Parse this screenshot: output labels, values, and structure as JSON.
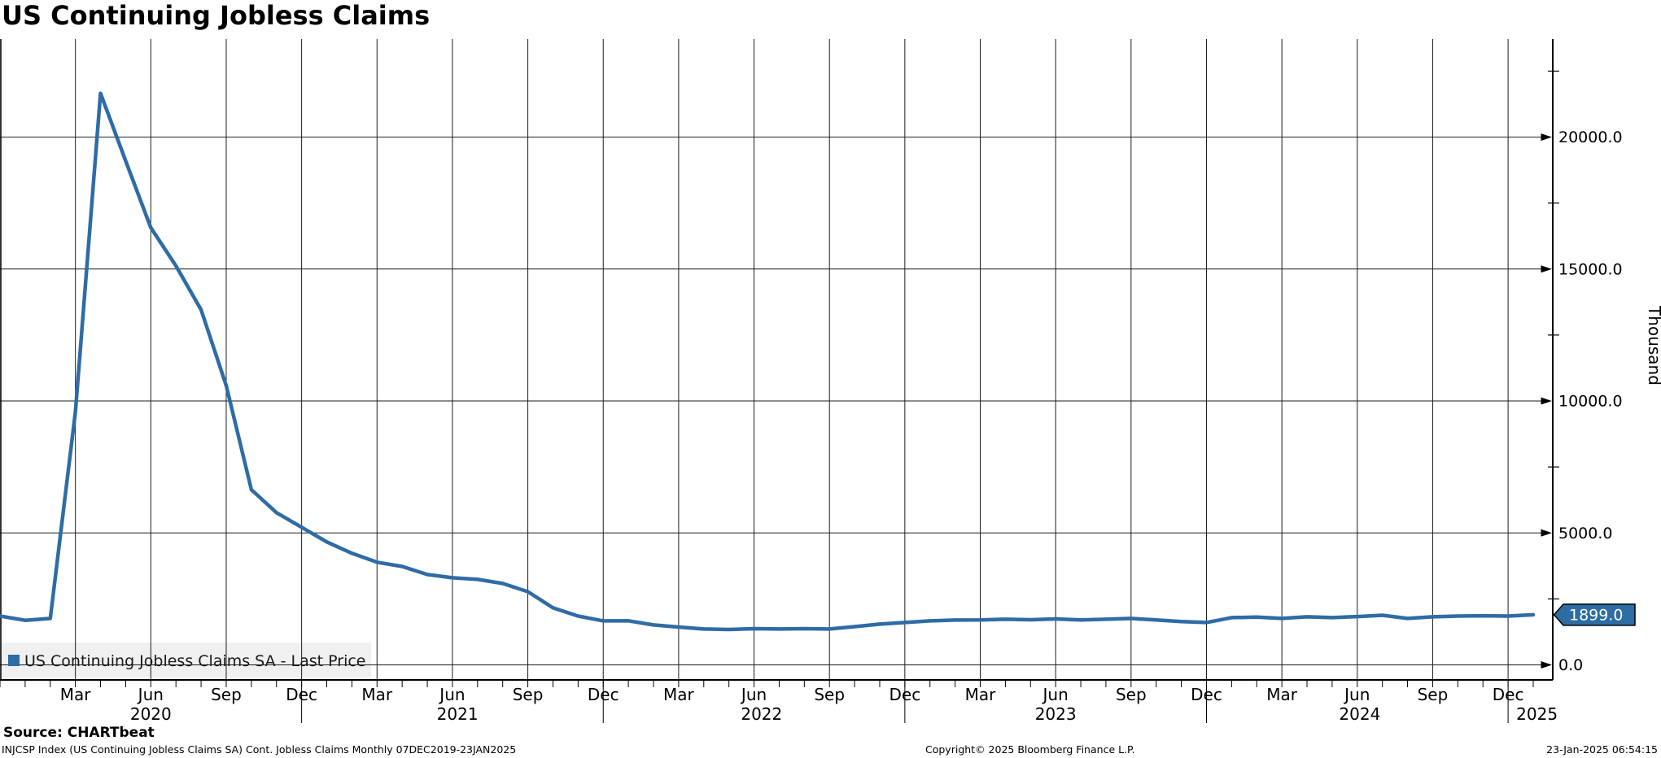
{
  "title": "US Continuing Jobless Claims",
  "colors": {
    "line": "#2e6ca6",
    "flag_bg": "#2e6da4",
    "flag_text": "#ffffff",
    "legend_bg": "#f0f0f0",
    "grid": "#1c1c1c",
    "axis": "#000000",
    "background": "#ffffff"
  },
  "legend": {
    "marker": "square-icon",
    "label": "US Continuing Jobless Claims SA - Last Price"
  },
  "last_price_flag": {
    "value": "1899.0"
  },
  "y_axis": {
    "unit_label": "Thousand",
    "ticks": [
      {
        "value": 0,
        "label": "0.0"
      },
      {
        "value": 5000,
        "label": "5000.0"
      },
      {
        "value": 10000,
        "label": "10000.0"
      },
      {
        "value": 15000,
        "label": "15000.0"
      },
      {
        "value": 20000,
        "label": "20000.0"
      }
    ],
    "minor_ticks": [
      2500,
      7500,
      12500,
      17500,
      22500
    ]
  },
  "x_axis": {
    "quarter_ticks": [
      {
        "label": "Mar",
        "month": 3
      },
      {
        "label": "Jun",
        "month": 6
      },
      {
        "label": "Sep",
        "month": 9
      },
      {
        "label": "Dec",
        "month": 12
      },
      {
        "label": "Mar",
        "month": 15
      },
      {
        "label": "Jun",
        "month": 18
      },
      {
        "label": "Sep",
        "month": 21
      },
      {
        "label": "Dec",
        "month": 24
      },
      {
        "label": "Mar",
        "month": 27
      },
      {
        "label": "Jun",
        "month": 30
      },
      {
        "label": "Sep",
        "month": 33
      },
      {
        "label": "Dec",
        "month": 36
      },
      {
        "label": "Mar",
        "month": 39
      },
      {
        "label": "Jun",
        "month": 42
      },
      {
        "label": "Sep",
        "month": 45
      },
      {
        "label": "Dec",
        "month": 48
      },
      {
        "label": "Mar",
        "month": 51
      },
      {
        "label": "Jun",
        "month": 54
      },
      {
        "label": "Sep",
        "month": 57
      },
      {
        "label": "Dec",
        "month": 60
      }
    ],
    "year_labels": [
      {
        "label": "2020",
        "center_month": 6.0
      },
      {
        "label": "2021",
        "center_month": 18.2
      },
      {
        "label": "2022",
        "center_month": 30.3
      },
      {
        "label": "2023",
        "center_month": 42.0
      },
      {
        "label": "2024",
        "center_month": 54.1
      },
      {
        "label": "2025",
        "center_month": 61.15
      }
    ],
    "year_separator_months": [
      12,
      24,
      36,
      48,
      60
    ]
  },
  "footer": {
    "source": "Source: CHARTbeat",
    "security_info": "INJCSP Index (US Continuing Jobless Claims SA) Cont. Jobless Claims  Monthly 07DEC2019-23JAN2025",
    "copyright": "Copyright© 2025 Bloomberg Finance L.P.",
    "timestamp": "23-Jan-2025 06:54:15"
  },
  "chart_data": {
    "type": "line",
    "title": "US Continuing Jobless Claims",
    "ylabel": "Thousand",
    "ylim": [
      0,
      23700
    ],
    "frequency": "Monthly",
    "date_range": "07DEC2019-23JAN2025",
    "grid": true,
    "legend_position": "bottom-left",
    "x": [
      "Dec 2019",
      "Jan 2020",
      "Feb 2020",
      "Mar 2020",
      "Apr 2020",
      "May 2020",
      "Jun 2020",
      "Jul 2020",
      "Aug 2020",
      "Sep 2020",
      "Oct 2020",
      "Nov 2020",
      "Dec 2020",
      "Jan 2021",
      "Feb 2021",
      "Mar 2021",
      "Apr 2021",
      "May 2021",
      "Jun 2021",
      "Jul 2021",
      "Aug 2021",
      "Sep 2021",
      "Oct 2021",
      "Nov 2021",
      "Dec 2021",
      "Jan 2022",
      "Feb 2022",
      "Mar 2022",
      "Apr 2022",
      "May 2022",
      "Jun 2022",
      "Jul 2022",
      "Aug 2022",
      "Sep 2022",
      "Oct 2022",
      "Nov 2022",
      "Dec 2022",
      "Jan 2023",
      "Feb 2023",
      "Mar 2023",
      "Apr 2023",
      "May 2023",
      "Jun 2023",
      "Jul 2023",
      "Aug 2023",
      "Sep 2023",
      "Oct 2023",
      "Nov 2023",
      "Dec 2023",
      "Jan 2024",
      "Feb 2024",
      "Mar 2024",
      "Apr 2024",
      "May 2024",
      "Jun 2024",
      "Jul 2024",
      "Aug 2024",
      "Sep 2024",
      "Oct 2024",
      "Nov 2024",
      "Dec 2024",
      "Jan 2025"
    ],
    "series": [
      {
        "name": "US Continuing Jobless Claims SA - Last Price",
        "color": "#2e6ca6",
        "values": [
          1850,
          1690,
          1760,
          9600,
          21660,
          19100,
          16570,
          15120,
          13455,
          10580,
          6640,
          5770,
          5215,
          4660,
          4230,
          3890,
          3730,
          3425,
          3300,
          3240,
          3085,
          2775,
          2160,
          1850,
          1666,
          1670,
          1512,
          1432,
          1358,
          1342,
          1373,
          1358,
          1373,
          1358,
          1450,
          1543,
          1605,
          1666,
          1697,
          1700,
          1730,
          1710,
          1740,
          1700,
          1730,
          1760,
          1700,
          1640,
          1605,
          1790,
          1810,
          1760,
          1820,
          1790,
          1830,
          1880,
          1760,
          1820,
          1850,
          1860,
          1850,
          1899
        ]
      }
    ],
    "last_value_label": "1899.0"
  }
}
